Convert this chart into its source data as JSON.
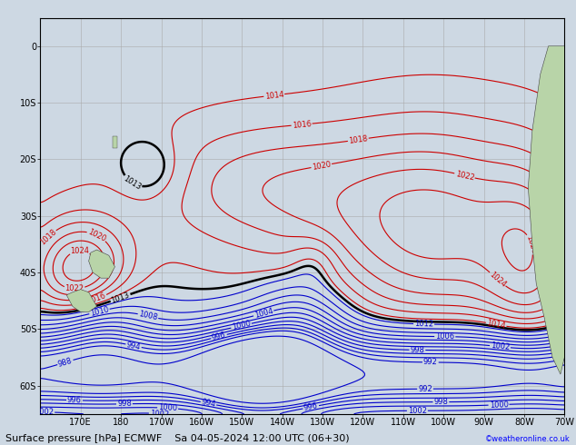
{
  "title": "Surface pressure [hPa] ECMWF",
  "subtitle": "Sa 04-05-2024 12:00 UTC (06+30)",
  "credit": "©weatheronline.co.uk",
  "lon_min": 160,
  "lon_max": 290,
  "lat_min": -65,
  "lat_max": 5,
  "xlabel_ticks": [
    170,
    180,
    190,
    200,
    210,
    220,
    230,
    240,
    250,
    260,
    270,
    280,
    290
  ],
  "xlabel_labels": [
    "170E",
    "180",
    "170W",
    "160W",
    "150W",
    "140W",
    "130W",
    "120W",
    "110W",
    "100W",
    "90W",
    "80W",
    "70W"
  ],
  "ylabel_ticks": [
    -60,
    -50,
    -40,
    -30,
    -20,
    -10,
    0
  ],
  "ylabel_labels": [
    "60S",
    "50S",
    "40S",
    "30S",
    "20S",
    "10S",
    "0"
  ],
  "bg_color": "#cdd8e3",
  "land_color": "#b8d4a8",
  "grid_color": "#aaaaaa",
  "isobar_blue_color": "#0000cc",
  "isobar_black_color": "#000000",
  "isobar_red_color": "#cc0000",
  "axis_label_fontsize": 7,
  "title_fontsize": 8
}
